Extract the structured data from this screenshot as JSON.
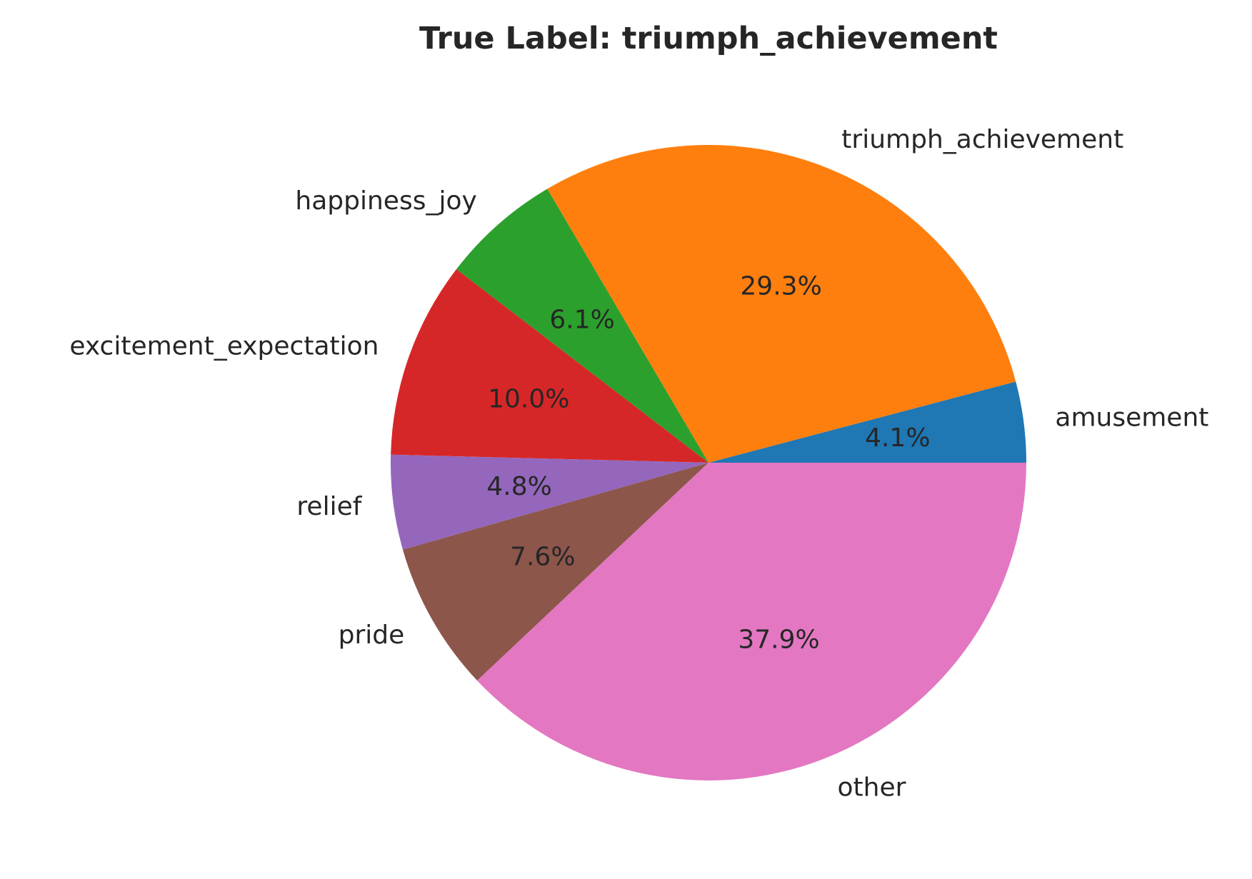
{
  "chart_data": {
    "type": "pie",
    "title": "True Label: triumph_achievement",
    "start_angle_deg": 0,
    "direction": "counterclockwise",
    "slices": [
      {
        "label": "amusement",
        "value": 4.1,
        "pct_label": "4.1%",
        "color": "#1f77b4"
      },
      {
        "label": "triumph_achievement",
        "value": 29.3,
        "pct_label": "29.3%",
        "color": "#ff7f0e"
      },
      {
        "label": "happiness_joy",
        "value": 6.1,
        "pct_label": "6.1%",
        "color": "#2ca02c"
      },
      {
        "label": "excitement_expectation",
        "value": 10.0,
        "pct_label": "10.0%",
        "color": "#d62728"
      },
      {
        "label": "relief",
        "value": 4.8,
        "pct_label": "4.8%",
        "color": "#9467bd"
      },
      {
        "label": "pride",
        "value": 7.6,
        "pct_label": "7.6%",
        "color": "#8c564b"
      },
      {
        "label": "other",
        "value": 37.9,
        "pct_label": "37.9%",
        "color": "#e377c2"
      }
    ]
  }
}
